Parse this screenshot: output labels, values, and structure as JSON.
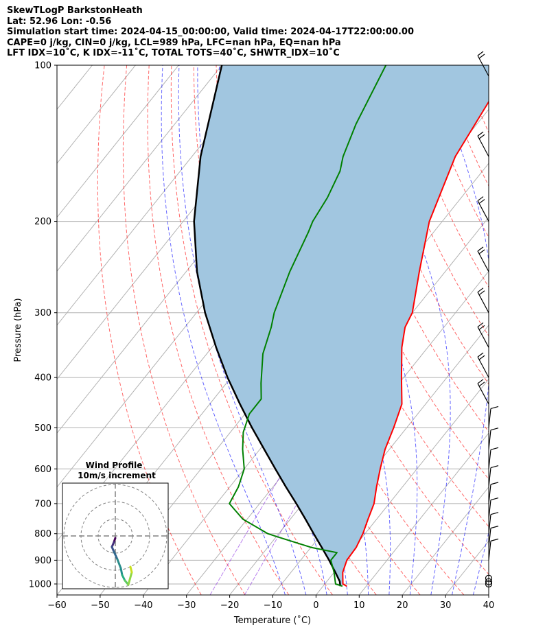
{
  "header": {
    "line1": "SkewTLogP BarkstonHeath",
    "line2": "Lat: 52.96   Lon: -0.56",
    "line3": "Simulation start time: 2024-04-15_00:00:00, Valid time: 2024-04-17T22:00:00.00",
    "line4": "CAPE=0 j/kg, CIN=0 j/kg, LCL=989 hPa, LFC=nan hPa, EQ=nan hPa",
    "line5": "LFT IDX=10˚C, K IDX=-11˚C, TOTAL TOTS=40˚C, SHWTR_IDX=10˚C"
  },
  "inset": {
    "title": "Wind Profile",
    "subtitle": "10m/s increment"
  },
  "chart_data": {
    "type": "line",
    "xlabel": "Temperature (˚C)",
    "ylabel": "Pressure (hPa)",
    "xlim": [
      -60,
      40
    ],
    "ylim": [
      1050,
      100
    ],
    "y_scale": "log",
    "grid": true,
    "x_ticks": [
      "−60",
      "−50",
      "−40",
      "−30",
      "−20",
      "−10",
      "0",
      "10",
      "20",
      "30",
      "40"
    ],
    "y_ticks": [
      "100",
      "200",
      "300",
      "400",
      "500",
      "600",
      "700",
      "800",
      "900",
      "1000"
    ],
    "colors": {
      "temperature": "#ff0000",
      "dewpoint": "#008000",
      "parcel": "#000000",
      "cape_shading": "#a1c6e0",
      "dry_adiabats": "#ff0000",
      "moist_adiabats": "#0000ff",
      "mixing_ratio": "#8a2be2",
      "isotherms": "#999999"
    },
    "series": [
      {
        "key": "temperature",
        "pressure": [
          1010,
          1000,
          950,
          900,
          850,
          800,
          750,
          700,
          650,
          600,
          550,
          500,
          450,
          400,
          350,
          320,
          300,
          250,
          200,
          150,
          100
        ],
        "values": [
          5.5,
          4.2,
          2.0,
          0.7,
          0.5,
          -0.5,
          -2.0,
          -3.5,
          -6.0,
          -8.5,
          -11.0,
          -13.0,
          -15.5,
          -20.5,
          -26.0,
          -29.0,
          -30.0,
          -36.0,
          -43.0,
          -49.0,
          -53.0
        ]
      },
      {
        "key": "dewpoint",
        "pressure": [
          1010,
          1000,
          950,
          900,
          870,
          850,
          810,
          800,
          750,
          700,
          650,
          600,
          550,
          510,
          470,
          440,
          410,
          360,
          320,
          300,
          250,
          210,
          200,
          180,
          160,
          150,
          130,
          100
        ],
        "values": [
          4.5,
          2.5,
          0.0,
          -3.0,
          -3.0,
          -10.0,
          -20.0,
          -22.5,
          -31.0,
          -37.0,
          -38.0,
          -40.0,
          -44.0,
          -47.0,
          -49.0,
          -49.0,
          -52.0,
          -57.0,
          -60.0,
          -62.0,
          -66.0,
          -69.0,
          -70.0,
          -71.0,
          -73.0,
          -75.0,
          -78.0,
          -82.0
        ]
      },
      {
        "key": "parcel",
        "pressure": [
          1010,
          989,
          950,
          900,
          850,
          800,
          750,
          700,
          650,
          600,
          550,
          500,
          450,
          400,
          350,
          300,
          250,
          200,
          150,
          100
        ],
        "values": [
          4.0,
          3.0,
          0.3,
          -3.4,
          -7.5,
          -11.9,
          -16.5,
          -21.5,
          -27.0,
          -32.8,
          -39.0,
          -45.8,
          -53.0,
          -60.8,
          -69.0,
          -78.0,
          -87.5,
          -97.5,
          -108.0,
          -120.0
        ]
      }
    ],
    "wind_barbs": [
      {
        "pressure": 1000,
        "speed": "calm"
      },
      {
        "pressure": 990,
        "speed": "calm"
      },
      {
        "pressure": 975,
        "speed": "calm"
      }
    ]
  }
}
